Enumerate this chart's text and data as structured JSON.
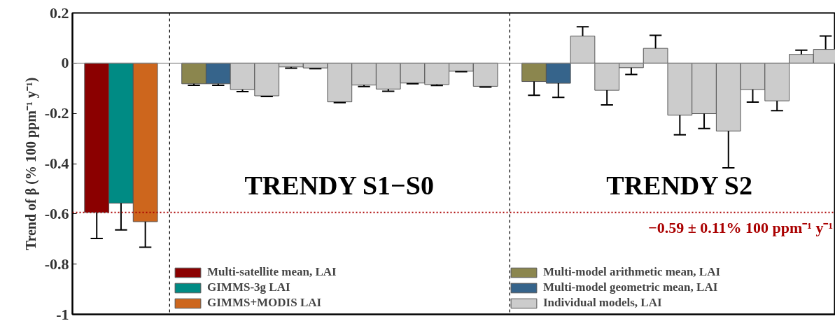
{
  "chart_data": {
    "type": "bar",
    "ylabel": "Trend of β (% 100 ppm⁻¹ y⁻¹)",
    "categories": [
      null,
      null,
      null,
      null,
      null,
      null,
      null,
      null,
      null,
      null,
      null,
      null,
      null,
      null,
      null,
      null,
      null,
      null,
      null,
      null,
      null,
      null,
      null,
      null,
      null,
      null,
      null,
      null,
      null,
      null,
      null
    ],
    "series": [
      {
        "name": "Multi-satellite mean, LAI",
        "color": "#8b0000",
        "values": [
          -0.594,
          null,
          null,
          null,
          null,
          null,
          null,
          null,
          null,
          null,
          null,
          null,
          null,
          null,
          null,
          null,
          null,
          null,
          null,
          null,
          null,
          null,
          null,
          null,
          null,
          null,
          null,
          null,
          null,
          null,
          null
        ],
        "errors": [
          [
            -0.698,
            -0.594
          ],
          null,
          null,
          null,
          null,
          null,
          null,
          null,
          null,
          null,
          null,
          null,
          null,
          null,
          null,
          null,
          null,
          null,
          null,
          null,
          null,
          null,
          null,
          null,
          null,
          null,
          null,
          null,
          null,
          null,
          null
        ]
      },
      {
        "name": "GIMMS-3g LAI",
        "color": "#008b84",
        "values": [
          null,
          -0.557,
          null,
          null,
          null,
          null,
          null,
          null,
          null,
          null,
          null,
          null,
          null,
          null,
          null,
          null,
          null,
          null,
          null,
          null,
          null,
          null,
          null,
          null,
          null,
          null,
          null,
          null,
          null,
          null,
          null
        ],
        "errors": [
          null,
          [
            -0.664,
            -0.557
          ],
          null,
          null,
          null,
          null,
          null,
          null,
          null,
          null,
          null,
          null,
          null,
          null,
          null,
          null,
          null,
          null,
          null,
          null,
          null,
          null,
          null,
          null,
          null,
          null,
          null,
          null,
          null,
          null,
          null
        ]
      },
      {
        "name": "GIMMS+MODIS LAI",
        "color": "#cd661d",
        "values": [
          null,
          null,
          -0.631,
          null,
          null,
          null,
          null,
          null,
          null,
          null,
          null,
          null,
          null,
          null,
          null,
          null,
          null,
          null,
          null,
          null,
          null,
          null,
          null,
          null,
          null,
          null,
          null,
          null,
          null,
          null,
          null
        ],
        "errors": [
          null,
          null,
          [
            -0.733,
            -0.631
          ],
          null,
          null,
          null,
          null,
          null,
          null,
          null,
          null,
          null,
          null,
          null,
          null,
          null,
          null,
          null,
          null,
          null,
          null,
          null,
          null,
          null,
          null,
          null,
          null,
          null,
          null,
          null,
          null
        ]
      },
      {
        "name": "Multi-model arithmetic mean, LAI",
        "color": "#8b864e",
        "values": [
          null,
          null,
          null,
          null,
          -0.082,
          null,
          null,
          null,
          null,
          null,
          null,
          null,
          null,
          null,
          null,
          null,
          null,
          null,
          -0.073,
          null,
          null,
          null,
          null,
          null,
          null,
          null,
          null,
          null,
          null,
          null,
          null
        ],
        "errors": [
          null,
          null,
          null,
          null,
          [
            -0.088,
            -0.082
          ],
          null,
          null,
          null,
          null,
          null,
          null,
          null,
          null,
          null,
          null,
          null,
          null,
          null,
          [
            -0.128,
            -0.073
          ],
          null,
          null,
          null,
          null,
          null,
          null,
          null,
          null,
          null,
          null,
          null,
          null
        ]
      },
      {
        "name": "Multi-model geometric mean, LAI",
        "color": "#36648b",
        "values": [
          null,
          null,
          null,
          null,
          null,
          -0.082,
          null,
          null,
          null,
          null,
          null,
          null,
          null,
          null,
          null,
          null,
          null,
          null,
          null,
          -0.08,
          null,
          null,
          null,
          null,
          null,
          null,
          null,
          null,
          null,
          null,
          null
        ],
        "errors": [
          null,
          null,
          null,
          null,
          null,
          [
            -0.088,
            -0.082
          ],
          null,
          null,
          null,
          null,
          null,
          null,
          null,
          null,
          null,
          null,
          null,
          null,
          null,
          [
            -0.136,
            -0.08
          ],
          null,
          null,
          null,
          null,
          null,
          null,
          null,
          null,
          null,
          null,
          null
        ]
      },
      {
        "name": "Individual models, LAI",
        "color": "#cccccc",
        "values": [
          null,
          null,
          null,
          null,
          null,
          null,
          -0.105,
          -0.13,
          -0.015,
          -0.019,
          -0.154,
          -0.087,
          -0.103,
          -0.079,
          -0.085,
          -0.032,
          -0.092,
          null,
          null,
          null,
          0.108,
          -0.108,
          -0.018,
          0.059,
          -0.207,
          -0.201,
          -0.27,
          -0.105,
          -0.15,
          0.035,
          0.055
        ],
        "errors": [
          null,
          null,
          null,
          null,
          null,
          null,
          [
            -0.113,
            -0.105
          ],
          [
            -0.133,
            -0.13
          ],
          [
            -0.02,
            -0.015
          ],
          [
            -0.022,
            -0.019
          ],
          [
            -0.157,
            -0.154
          ],
          [
            -0.093,
            -0.087
          ],
          [
            -0.112,
            -0.103
          ],
          [
            -0.082,
            -0.079
          ],
          [
            -0.089,
            -0.085
          ],
          [
            -0.034,
            -0.032
          ],
          [
            -0.095,
            -0.092
          ],
          null,
          null,
          null,
          [
            0.108,
            0.145
          ],
          [
            -0.166,
            -0.108
          ],
          [
            -0.045,
            -0.018
          ],
          [
            0.059,
            0.111
          ],
          [
            -0.285,
            -0.207
          ],
          [
            -0.26,
            -0.201
          ],
          [
            -0.417,
            -0.27
          ],
          [
            -0.155,
            -0.105
          ],
          [
            -0.189,
            -0.15
          ],
          [
            0.035,
            0.052
          ],
          [
            0.055,
            0.108
          ]
        ]
      }
    ],
    "ylim": [
      -1,
      0.2
    ],
    "yticks": [
      0.2,
      0,
      -0.2,
      -0.4,
      -0.6,
      -0.8,
      -1
    ],
    "ref_lines": [
      {
        "axis": "y",
        "value": -0.594,
        "label": "−0.59 ± 0.11% 100 ppm⁻¹ y⁻¹",
        "color": "#aa0000",
        "line_style": "dotted"
      }
    ],
    "annotations": [
      "TRENDY S1−S0",
      "TRENDY S2"
    ],
    "grid": false,
    "legend": "bottom"
  }
}
